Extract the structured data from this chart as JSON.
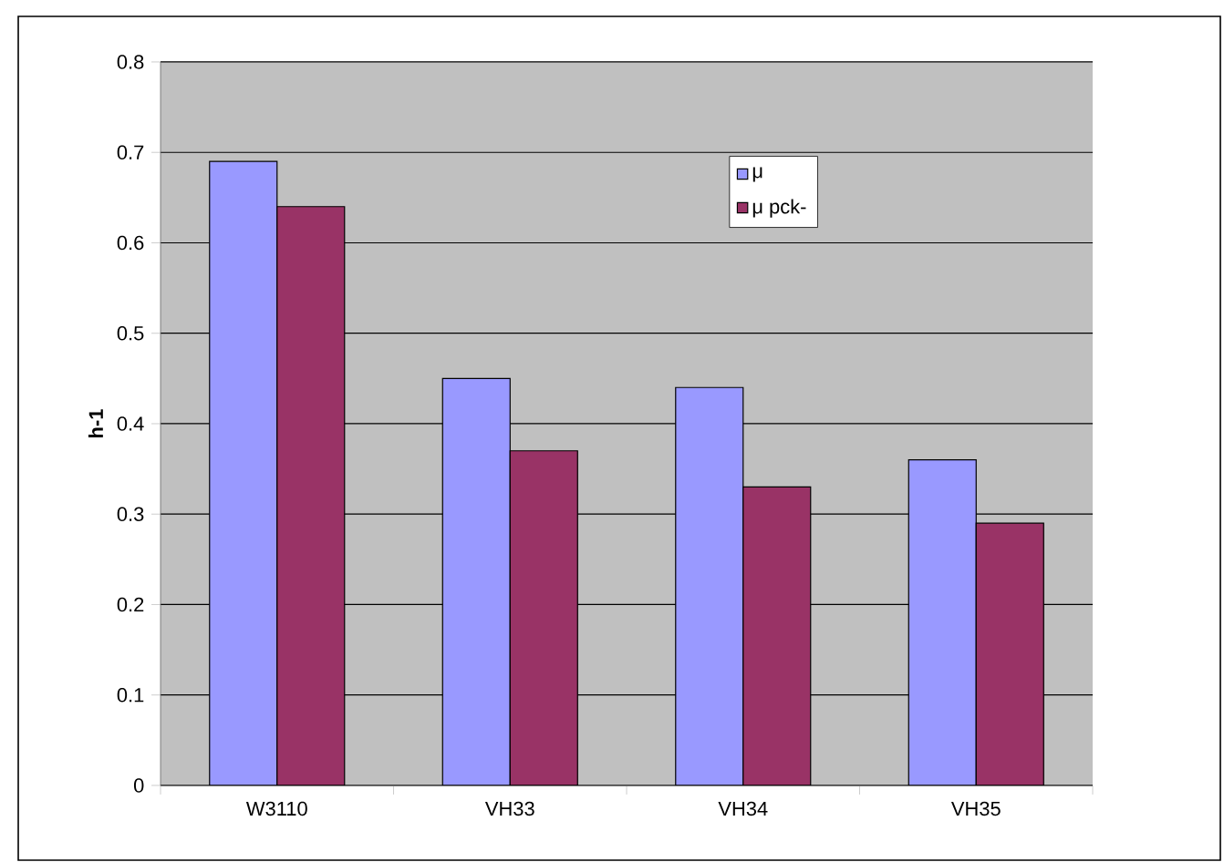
{
  "chart_data": {
    "type": "bar",
    "ylabel": "h-1",
    "categories": [
      "W3110",
      "VH33",
      "VH34",
      "VH35"
    ],
    "series": [
      {
        "name": "μ",
        "color": "#9999ff",
        "values": [
          0.69,
          0.45,
          0.44,
          0.36
        ]
      },
      {
        "name": "μ pck-",
        "color": "#993366",
        "values": [
          0.64,
          0.37,
          0.33,
          0.29
        ]
      }
    ],
    "ylim": [
      0,
      0.8
    ],
    "yticks": [
      0,
      0.1,
      0.2,
      0.3,
      0.4,
      0.5,
      0.6,
      0.7,
      0.8
    ],
    "grid": "y",
    "legend": "top right"
  }
}
